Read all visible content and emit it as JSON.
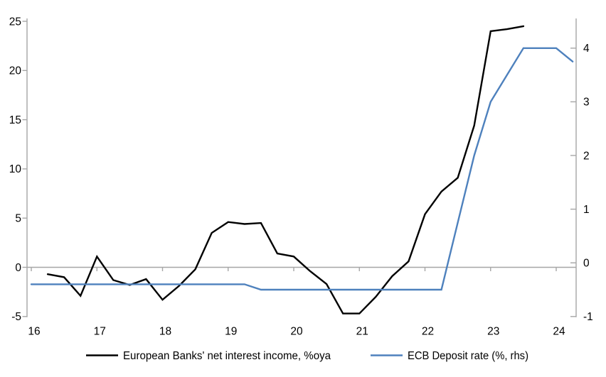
{
  "chart_data": {
    "type": "line",
    "title": "",
    "grid": false,
    "legend_position": "bottom",
    "x_axis": {
      "tick_labels": [
        "16",
        "17",
        "18",
        "19",
        "20",
        "21",
        "22",
        "23",
        "24"
      ],
      "tick_values": [
        16,
        17,
        18,
        19,
        20,
        21,
        22,
        23,
        24
      ],
      "min": 16,
      "max": 24.3
    },
    "left_axis": {
      "min": -5,
      "max": 25,
      "ticks": [
        25,
        20,
        15,
        10,
        5,
        0,
        -5
      ],
      "zero_line": true
    },
    "right_axis": {
      "min": -1,
      "max": 4.5,
      "ticks": [
        4,
        3,
        2,
        1,
        0,
        -1
      ]
    },
    "series": [
      {
        "name": "European Banks' net interest income, %oya",
        "axis": "left",
        "color": "#000000",
        "x": [
          16.25,
          16.5,
          16.75,
          17.0,
          17.25,
          17.5,
          17.75,
          18.0,
          18.25,
          18.5,
          18.75,
          19.0,
          19.25,
          19.5,
          19.75,
          20.0,
          20.25,
          20.5,
          20.75,
          21.0,
          21.25,
          21.5,
          21.75,
          22.0,
          22.25,
          22.5,
          22.75,
          23.0,
          23.25,
          23.5
        ],
        "values": [
          -0.7,
          -1.0,
          -2.9,
          1.1,
          -1.3,
          -1.8,
          -1.2,
          -3.3,
          -1.9,
          -0.2,
          3.5,
          4.6,
          4.4,
          4.5,
          1.4,
          1.1,
          -0.4,
          -1.7,
          -4.7,
          -4.7,
          -3.0,
          -0.9,
          0.6,
          5.4,
          7.7,
          9.1,
          14.4,
          24.0,
          24.2,
          24.5
        ]
      },
      {
        "name": "ECB Deposit rate (%, rhs)",
        "axis": "right",
        "color": "#4E81BD",
        "x": [
          16.0,
          16.25,
          16.5,
          16.75,
          17.0,
          17.25,
          17.5,
          17.75,
          18.0,
          18.25,
          18.5,
          18.75,
          19.0,
          19.25,
          19.5,
          19.75,
          20.0,
          20.25,
          20.5,
          20.75,
          21.0,
          21.25,
          21.5,
          21.75,
          22.0,
          22.25,
          22.5,
          22.75,
          23.0,
          23.25,
          23.5,
          23.75,
          24.0,
          24.25
        ],
        "values": [
          -0.4,
          -0.4,
          -0.4,
          -0.4,
          -0.4,
          -0.4,
          -0.4,
          -0.4,
          -0.4,
          -0.4,
          -0.4,
          -0.4,
          -0.4,
          -0.4,
          -0.5,
          -0.5,
          -0.5,
          -0.5,
          -0.5,
          -0.5,
          -0.5,
          -0.5,
          -0.5,
          -0.5,
          -0.5,
          -0.5,
          0.75,
          2.0,
          3.0,
          3.5,
          4.0,
          4.0,
          4.0,
          3.75
        ]
      }
    ],
    "colors": {
      "axis_line": "#A6A6A6",
      "zero_line": "#A6A6A6",
      "series_black": "#000000",
      "series_blue": "#4E81BD",
      "text": "#000000",
      "background": "#FFFFFF"
    }
  }
}
